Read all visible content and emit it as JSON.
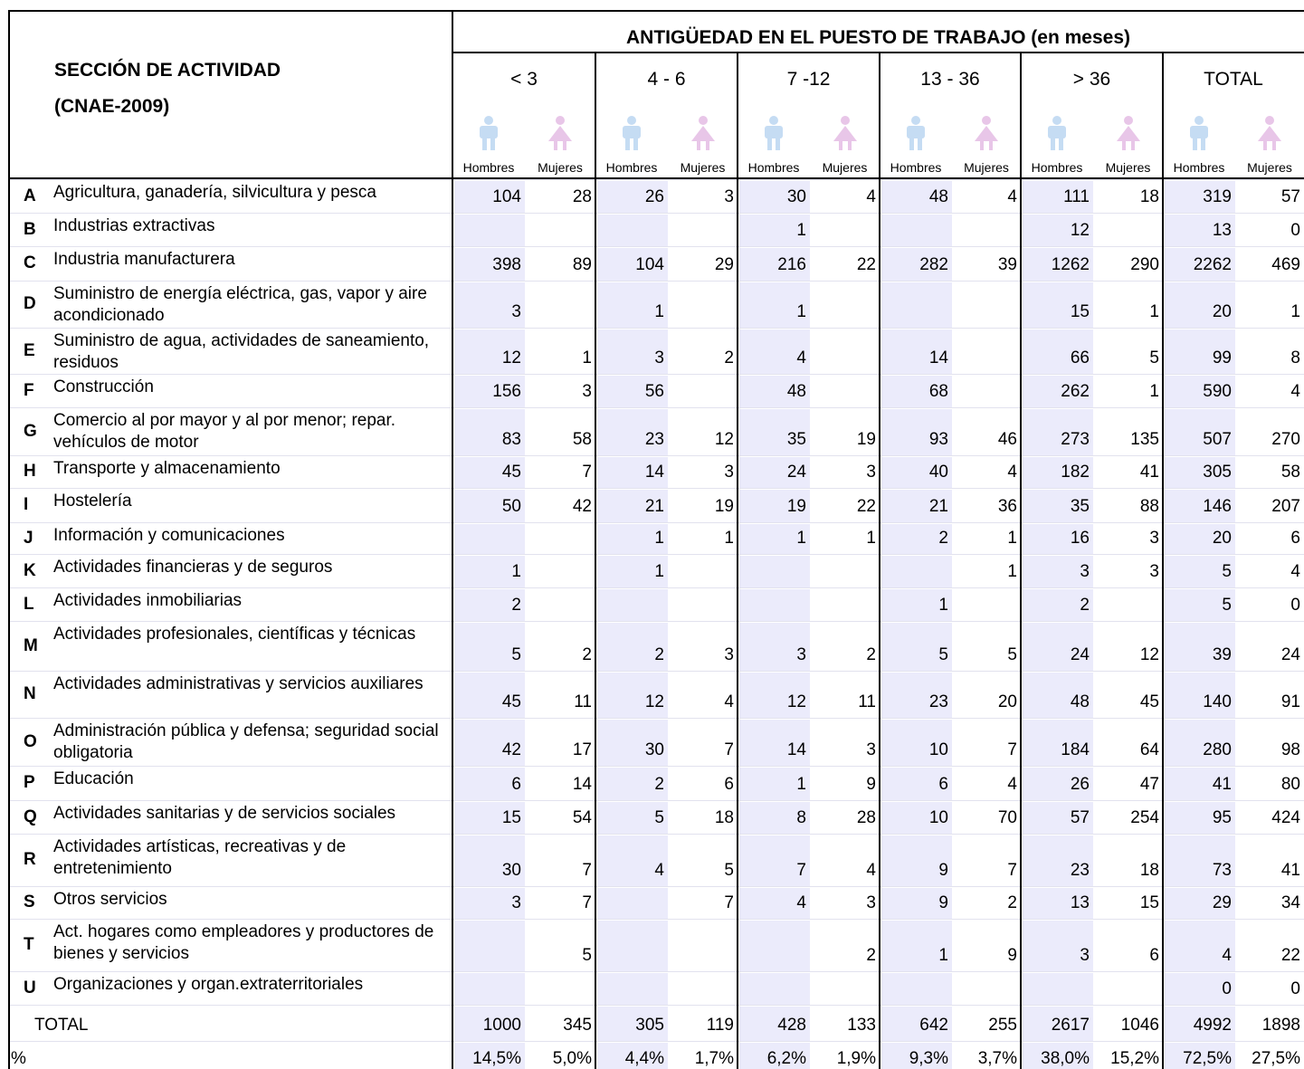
{
  "header": {
    "section_title": "SECCIÓN DE ACTIVIDAD",
    "section_subtitle": "(CNAE-2009)",
    "main_title": "ANTIGÜEDAD EN EL PUESTO DE TRABAJO (en meses)",
    "groups": [
      "< 3",
      "4 - 6",
      "7 -12",
      "13 - 36",
      "> 36",
      "TOTAL"
    ],
    "subheaders": [
      "Hombres",
      "Mujeres"
    ]
  },
  "rows": [
    {
      "letter": "A",
      "name": "Agricultura, ganadería, silvicultura y pesca",
      "values": [
        104,
        28,
        26,
        3,
        30,
        4,
        48,
        4,
        111,
        18,
        319,
        57
      ]
    },
    {
      "letter": "B",
      "name": "Industrias extractivas",
      "values": [
        null,
        null,
        null,
        null,
        1,
        null,
        null,
        null,
        12,
        null,
        13,
        0
      ]
    },
    {
      "letter": "C",
      "name": "Industria manufacturera",
      "values": [
        398,
        89,
        104,
        29,
        216,
        22,
        282,
        39,
        1262,
        290,
        2262,
        469
      ]
    },
    {
      "letter": "D",
      "name": "Suministro de energía eléctrica, gas, vapor y aire acondicionado",
      "values": [
        3,
        null,
        1,
        null,
        1,
        null,
        null,
        null,
        15,
        1,
        20,
        1
      ]
    },
    {
      "letter": "E",
      "name": "Suministro de agua, actividades de saneamiento, residuos",
      "values": [
        12,
        1,
        3,
        2,
        4,
        null,
        14,
        null,
        66,
        5,
        99,
        8
      ]
    },
    {
      "letter": "F",
      "name": "Construcción",
      "values": [
        156,
        3,
        56,
        null,
        48,
        null,
        68,
        null,
        262,
        1,
        590,
        4
      ]
    },
    {
      "letter": "G",
      "name": "Comercio al por mayor y al por menor; repar. vehículos de motor",
      "values": [
        83,
        58,
        23,
        12,
        35,
        19,
        93,
        46,
        273,
        135,
        507,
        270
      ]
    },
    {
      "letter": "H",
      "name": "Transporte y almacenamiento",
      "values": [
        45,
        7,
        14,
        3,
        24,
        3,
        40,
        4,
        182,
        41,
        305,
        58
      ]
    },
    {
      "letter": "I",
      "name": "Hostelería",
      "values": [
        50,
        42,
        21,
        19,
        19,
        22,
        21,
        36,
        35,
        88,
        146,
        207
      ]
    },
    {
      "letter": "J",
      "name": "Información y comunicaciones",
      "values": [
        null,
        null,
        1,
        1,
        1,
        1,
        2,
        1,
        16,
        3,
        20,
        6
      ]
    },
    {
      "letter": "K",
      "name": "Actividades financieras y de seguros",
      "values": [
        1,
        null,
        1,
        null,
        null,
        null,
        null,
        1,
        3,
        3,
        5,
        4
      ]
    },
    {
      "letter": "L",
      "name": "Actividades inmobiliarias",
      "values": [
        2,
        null,
        null,
        null,
        null,
        null,
        1,
        null,
        2,
        null,
        5,
        0
      ]
    },
    {
      "letter": "M",
      "name": "Actividades profesionales, científicas y técnicas",
      "values": [
        5,
        2,
        2,
        3,
        3,
        2,
        5,
        5,
        24,
        12,
        39,
        24
      ]
    },
    {
      "letter": "N",
      "name": "Actividades administrativas y servicios auxiliares",
      "values": [
        45,
        11,
        12,
        4,
        12,
        11,
        23,
        20,
        48,
        45,
        140,
        91
      ]
    },
    {
      "letter": "O",
      "name": "Administración pública y defensa; seguridad social obligatoria",
      "values": [
        42,
        17,
        30,
        7,
        14,
        3,
        10,
        7,
        184,
        64,
        280,
        98
      ]
    },
    {
      "letter": "P",
      "name": "Educación",
      "values": [
        6,
        14,
        2,
        6,
        1,
        9,
        6,
        4,
        26,
        47,
        41,
        80
      ]
    },
    {
      "letter": "Q",
      "name": "Actividades sanitarias y de servicios sociales",
      "values": [
        15,
        54,
        5,
        18,
        8,
        28,
        10,
        70,
        57,
        254,
        95,
        424
      ]
    },
    {
      "letter": "R",
      "name": "Actividades artísticas, recreativas y de entretenimiento",
      "values": [
        30,
        7,
        4,
        5,
        7,
        4,
        9,
        7,
        23,
        18,
        73,
        41
      ]
    },
    {
      "letter": "S",
      "name": "Otros servicios",
      "values": [
        3,
        7,
        null,
        7,
        4,
        3,
        9,
        2,
        13,
        15,
        29,
        34
      ]
    },
    {
      "letter": "T",
      "name": "Act. hogares como empleadores y productores de bienes y servicios",
      "values": [
        null,
        5,
        null,
        null,
        null,
        2,
        1,
        9,
        3,
        6,
        4,
        22
      ]
    },
    {
      "letter": "U",
      "name": "Organizaciones y organ.extraterritoriales",
      "values": [
        null,
        null,
        null,
        null,
        null,
        null,
        null,
        null,
        null,
        null,
        0,
        0
      ]
    }
  ],
  "total": {
    "label": "TOTAL",
    "values": [
      1000,
      345,
      305,
      119,
      428,
      133,
      642,
      255,
      2617,
      1046,
      4992,
      1898
    ]
  },
  "percent": {
    "label": "%",
    "values": [
      "14,5%",
      "5,0%",
      "4,4%",
      "1,7%",
      "6,2%",
      "1,9%",
      "9,3%",
      "3,7%",
      "38,0%",
      "15,2%",
      "72,5%",
      "27,5%"
    ]
  }
}
